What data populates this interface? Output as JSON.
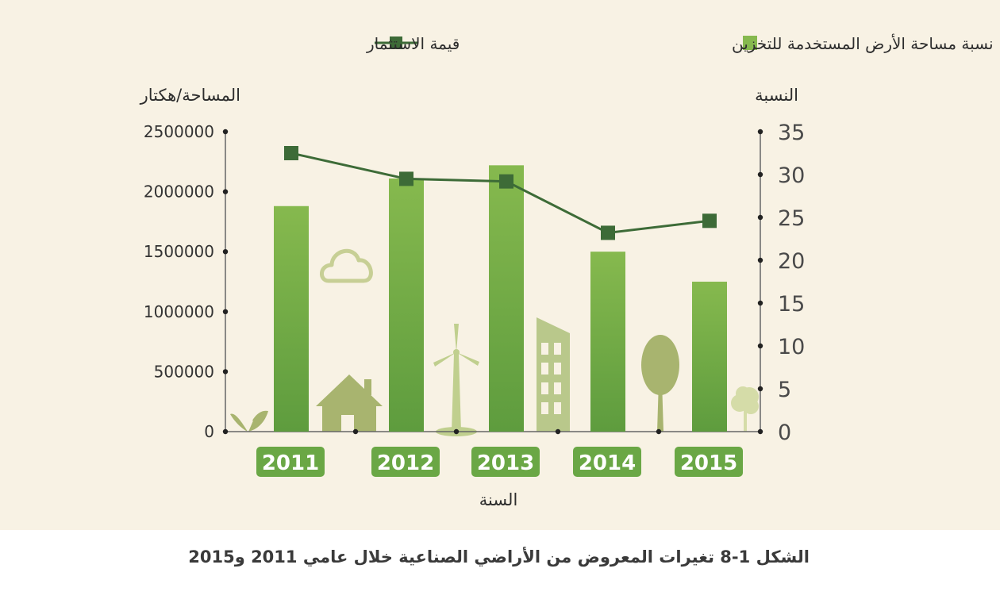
{
  "caption": "الشكل 1-8 تغيرات المعروض من الأراضي الصناعية خلال عامي 2011 و2015",
  "legend": {
    "bar_label": "نسبة مساحة الأرض المستخدمة للتخزين",
    "line_label": "قيمة الاستثمار"
  },
  "colors": {
    "bar_top": "#86b94e",
    "bar_bottom": "#5e9c3e",
    "line": "#3d6b37",
    "marker": "#3d6b37",
    "year_badge": "#6aa745",
    "background": "#f8f2e4",
    "illustration": "#a8b46f"
  },
  "chart_data": {
    "type": "bar",
    "categories": [
      "2011",
      "2012",
      "2013",
      "2014",
      "2015"
    ],
    "series": [
      {
        "name": "نسبة مساحة الأرض المستخدمة للتخزين",
        "type": "bar",
        "axis": "left",
        "values": [
          1880000,
          2110000,
          2220000,
          1500000,
          1250000
        ]
      },
      {
        "name": "قيمة الاستثمار",
        "type": "line",
        "axis": "right",
        "values": [
          32.5,
          29.5,
          29.2,
          23.2,
          24.6
        ]
      }
    ],
    "xlabel": "السنة",
    "ylabel_left": "المساحة/هكتار",
    "ylabel_right": "النسبة",
    "ylim_left": [
      0,
      2500000
    ],
    "ylim_right": [
      0,
      35
    ],
    "yticks_left": [
      "0",
      "500000",
      "1000000",
      "1500000",
      "2000000",
      "2500000"
    ],
    "yticks_right": [
      "0",
      "5",
      "10",
      "15",
      "20",
      "25",
      "30",
      "35"
    ],
    "legend_position": "top",
    "grid": false
  }
}
